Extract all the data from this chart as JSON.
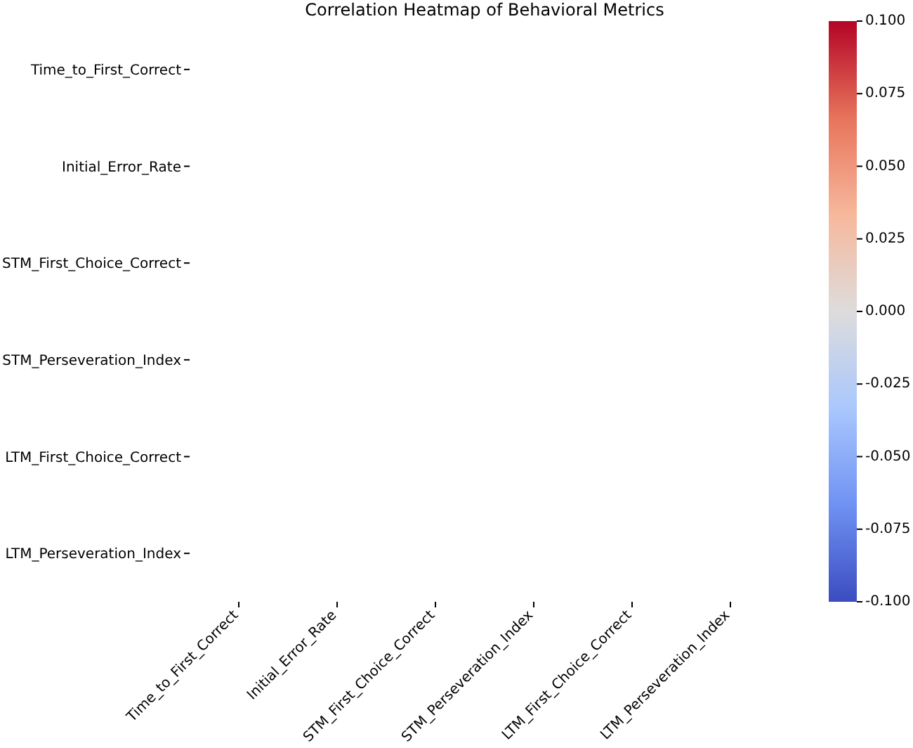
{
  "chart_data": {
    "type": "heatmap",
    "title": "Correlation Heatmap of Behavioral Metrics",
    "categories": [
      "Time_to_First_Correct",
      "Initial_Error_Rate",
      "STM_First_Choice_Correct",
      "STM_Perseveration_Index",
      "LTM_First_Choice_Correct",
      "LTM_Perseveration_Index"
    ],
    "y_categories": [
      "Time_to_First_Correct",
      "Initial_Error_Rate",
      "STM_First_Choice_Correct",
      "STM_Perseveration_Index",
      "LTM_First_Choice_Correct",
      "LTM_Perseveration_Index"
    ],
    "cells": [
      [
        null,
        null,
        null,
        null,
        null,
        null
      ],
      [
        null,
        null,
        null,
        null,
        null,
        null
      ],
      [
        null,
        null,
        null,
        null,
        null,
        null
      ],
      [
        null,
        null,
        null,
        null,
        null,
        null
      ],
      [
        null,
        null,
        null,
        null,
        null,
        null
      ],
      [
        null,
        null,
        null,
        null,
        null,
        null
      ]
    ],
    "clim": [
      -0.1,
      0.1
    ],
    "cticks": [
      {
        "value": -0.1,
        "label": "-0.100"
      },
      {
        "value": -0.075,
        "label": "-0.075"
      },
      {
        "value": -0.05,
        "label": "-0.050"
      },
      {
        "value": -0.025,
        "label": "-0.025"
      },
      {
        "value": 0,
        "label": "0.000"
      },
      {
        "value": 0.025,
        "label": "0.025"
      },
      {
        "value": 0.05,
        "label": "0.050"
      },
      {
        "value": 0.075,
        "label": "0.075"
      },
      {
        "value": 0.1,
        "label": "0.100"
      }
    ]
  }
}
